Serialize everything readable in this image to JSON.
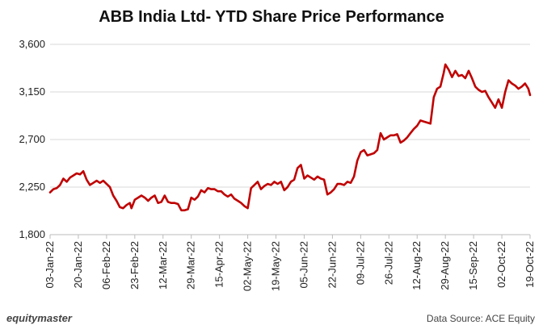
{
  "chart_data": {
    "type": "line",
    "title": "ABB India Ltd- YTD Share Price Performance",
    "xlabel": "",
    "ylabel": "",
    "ylim": [
      1800,
      3600
    ],
    "yticks": [
      "1,800",
      "2,250",
      "2,700",
      "3,150",
      "3,600"
    ],
    "ytick_values": [
      1800,
      2250,
      2700,
      3150,
      3600
    ],
    "xlim": [
      "2022-01-03",
      "2022-10-19"
    ],
    "xticks": [
      "03-Jan-22",
      "20-Jan-22",
      "06-Feb-22",
      "23-Feb-22",
      "12-Mar-22",
      "29-Mar-22",
      "15-Apr-22",
      "02-May-22",
      "19-May-22",
      "05-Jun-22",
      "22-Jun-22",
      "09-Jul-22",
      "26-Jul-22",
      "12-Aug-22",
      "29-Aug-22",
      "15-Sep-22",
      "02-Oct-22",
      "19-Oct-22"
    ],
    "xtick_dates": [
      "2022-01-03",
      "2022-01-20",
      "2022-02-06",
      "2022-02-23",
      "2022-03-12",
      "2022-03-29",
      "2022-04-15",
      "2022-05-02",
      "2022-05-19",
      "2022-06-05",
      "2022-06-22",
      "2022-07-09",
      "2022-07-26",
      "2022-08-12",
      "2022-08-29",
      "2022-09-15",
      "2022-10-02",
      "2022-10-19"
    ],
    "grid": "horizontal",
    "line_color": "#c00000",
    "series": [
      {
        "name": "",
        "points": [
          [
            "2022-01-03",
            2200
          ],
          [
            "2022-01-05",
            2230
          ],
          [
            "2022-01-07",
            2240
          ],
          [
            "2022-01-09",
            2270
          ],
          [
            "2022-01-11",
            2330
          ],
          [
            "2022-01-13",
            2300
          ],
          [
            "2022-01-15",
            2340
          ],
          [
            "2022-01-17",
            2360
          ],
          [
            "2022-01-19",
            2380
          ],
          [
            "2022-01-21",
            2370
          ],
          [
            "2022-01-23",
            2400
          ],
          [
            "2022-01-25",
            2320
          ],
          [
            "2022-01-27",
            2270
          ],
          [
            "2022-01-29",
            2290
          ],
          [
            "2022-01-31",
            2310
          ],
          [
            "2022-02-02",
            2290
          ],
          [
            "2022-02-04",
            2310
          ],
          [
            "2022-02-06",
            2280
          ],
          [
            "2022-02-08",
            2250
          ],
          [
            "2022-02-10",
            2170
          ],
          [
            "2022-02-12",
            2120
          ],
          [
            "2022-02-14",
            2060
          ],
          [
            "2022-02-16",
            2050
          ],
          [
            "2022-02-18",
            2080
          ],
          [
            "2022-02-20",
            2100
          ],
          [
            "2022-02-21",
            2050
          ],
          [
            "2022-02-23",
            2130
          ],
          [
            "2022-02-25",
            2150
          ],
          [
            "2022-02-27",
            2170
          ],
          [
            "2022-03-01",
            2150
          ],
          [
            "2022-03-03",
            2120
          ],
          [
            "2022-03-05",
            2150
          ],
          [
            "2022-03-07",
            2170
          ],
          [
            "2022-03-09",
            2100
          ],
          [
            "2022-03-11",
            2110
          ],
          [
            "2022-03-13",
            2170
          ],
          [
            "2022-03-15",
            2110
          ],
          [
            "2022-03-17",
            2100
          ],
          [
            "2022-03-19",
            2100
          ],
          [
            "2022-03-21",
            2090
          ],
          [
            "2022-03-23",
            2030
          ],
          [
            "2022-03-25",
            2030
          ],
          [
            "2022-03-27",
            2040
          ],
          [
            "2022-03-29",
            2150
          ],
          [
            "2022-03-31",
            2130
          ],
          [
            "2022-04-02",
            2160
          ],
          [
            "2022-04-04",
            2220
          ],
          [
            "2022-04-06",
            2200
          ],
          [
            "2022-04-08",
            2240
          ],
          [
            "2022-04-10",
            2230
          ],
          [
            "2022-04-12",
            2230
          ],
          [
            "2022-04-14",
            2210
          ],
          [
            "2022-04-16",
            2210
          ],
          [
            "2022-04-18",
            2180
          ],
          [
            "2022-04-20",
            2160
          ],
          [
            "2022-04-22",
            2180
          ],
          [
            "2022-04-24",
            2140
          ],
          [
            "2022-04-26",
            2120
          ],
          [
            "2022-04-28",
            2100
          ],
          [
            "2022-04-30",
            2070
          ],
          [
            "2022-05-02",
            2050
          ],
          [
            "2022-05-04",
            2240
          ],
          [
            "2022-05-06",
            2270
          ],
          [
            "2022-05-08",
            2300
          ],
          [
            "2022-05-10",
            2230
          ],
          [
            "2022-05-12",
            2260
          ],
          [
            "2022-05-14",
            2280
          ],
          [
            "2022-05-16",
            2270
          ],
          [
            "2022-05-18",
            2300
          ],
          [
            "2022-05-20",
            2280
          ],
          [
            "2022-05-22",
            2300
          ],
          [
            "2022-05-24",
            2220
          ],
          [
            "2022-05-26",
            2250
          ],
          [
            "2022-05-28",
            2300
          ],
          [
            "2022-05-30",
            2320
          ],
          [
            "2022-06-01",
            2430
          ],
          [
            "2022-06-03",
            2460
          ],
          [
            "2022-06-05",
            2330
          ],
          [
            "2022-06-07",
            2360
          ],
          [
            "2022-06-09",
            2340
          ],
          [
            "2022-06-11",
            2320
          ],
          [
            "2022-06-13",
            2350
          ],
          [
            "2022-06-15",
            2330
          ],
          [
            "2022-06-17",
            2320
          ],
          [
            "2022-06-19",
            2180
          ],
          [
            "2022-06-21",
            2200
          ],
          [
            "2022-06-23",
            2230
          ],
          [
            "2022-06-25",
            2280
          ],
          [
            "2022-06-27",
            2280
          ],
          [
            "2022-06-29",
            2270
          ],
          [
            "2022-07-01",
            2300
          ],
          [
            "2022-07-03",
            2290
          ],
          [
            "2022-07-05",
            2350
          ],
          [
            "2022-07-07",
            2500
          ],
          [
            "2022-07-09",
            2580
          ],
          [
            "2022-07-11",
            2600
          ],
          [
            "2022-07-13",
            2550
          ],
          [
            "2022-07-15",
            2560
          ],
          [
            "2022-07-17",
            2570
          ],
          [
            "2022-07-19",
            2600
          ],
          [
            "2022-07-21",
            2760
          ],
          [
            "2022-07-23",
            2700
          ],
          [
            "2022-07-25",
            2720
          ],
          [
            "2022-07-27",
            2740
          ],
          [
            "2022-07-29",
            2740
          ],
          [
            "2022-07-31",
            2750
          ],
          [
            "2022-08-02",
            2670
          ],
          [
            "2022-08-04",
            2690
          ],
          [
            "2022-08-06",
            2720
          ],
          [
            "2022-08-08",
            2760
          ],
          [
            "2022-08-10",
            2800
          ],
          [
            "2022-08-12",
            2830
          ],
          [
            "2022-08-14",
            2880
          ],
          [
            "2022-08-16",
            2870
          ],
          [
            "2022-08-18",
            2860
          ],
          [
            "2022-08-20",
            2850
          ],
          [
            "2022-08-22",
            3100
          ],
          [
            "2022-08-24",
            3180
          ],
          [
            "2022-08-26",
            3200
          ],
          [
            "2022-08-28",
            3330
          ],
          [
            "2022-08-29",
            3410
          ],
          [
            "2022-08-31",
            3360
          ],
          [
            "2022-09-02",
            3290
          ],
          [
            "2022-09-04",
            3350
          ],
          [
            "2022-09-06",
            3300
          ],
          [
            "2022-09-08",
            3310
          ],
          [
            "2022-09-10",
            3280
          ],
          [
            "2022-09-12",
            3350
          ],
          [
            "2022-09-14",
            3280
          ],
          [
            "2022-09-16",
            3200
          ],
          [
            "2022-09-18",
            3170
          ],
          [
            "2022-09-20",
            3150
          ],
          [
            "2022-09-22",
            3160
          ],
          [
            "2022-09-24",
            3100
          ],
          [
            "2022-09-26",
            3050
          ],
          [
            "2022-09-28",
            3000
          ],
          [
            "2022-09-30",
            3080
          ],
          [
            "2022-10-02",
            3000
          ],
          [
            "2022-10-04",
            3150
          ],
          [
            "2022-10-06",
            3260
          ],
          [
            "2022-10-08",
            3230
          ],
          [
            "2022-10-10",
            3210
          ],
          [
            "2022-10-12",
            3180
          ],
          [
            "2022-10-14",
            3200
          ],
          [
            "2022-10-16",
            3230
          ],
          [
            "2022-10-18",
            3180
          ],
          [
            "2022-10-19",
            3120
          ]
        ]
      }
    ]
  },
  "footer": {
    "brand": "equitymaster",
    "source": "Data Source: ACE Equity"
  }
}
